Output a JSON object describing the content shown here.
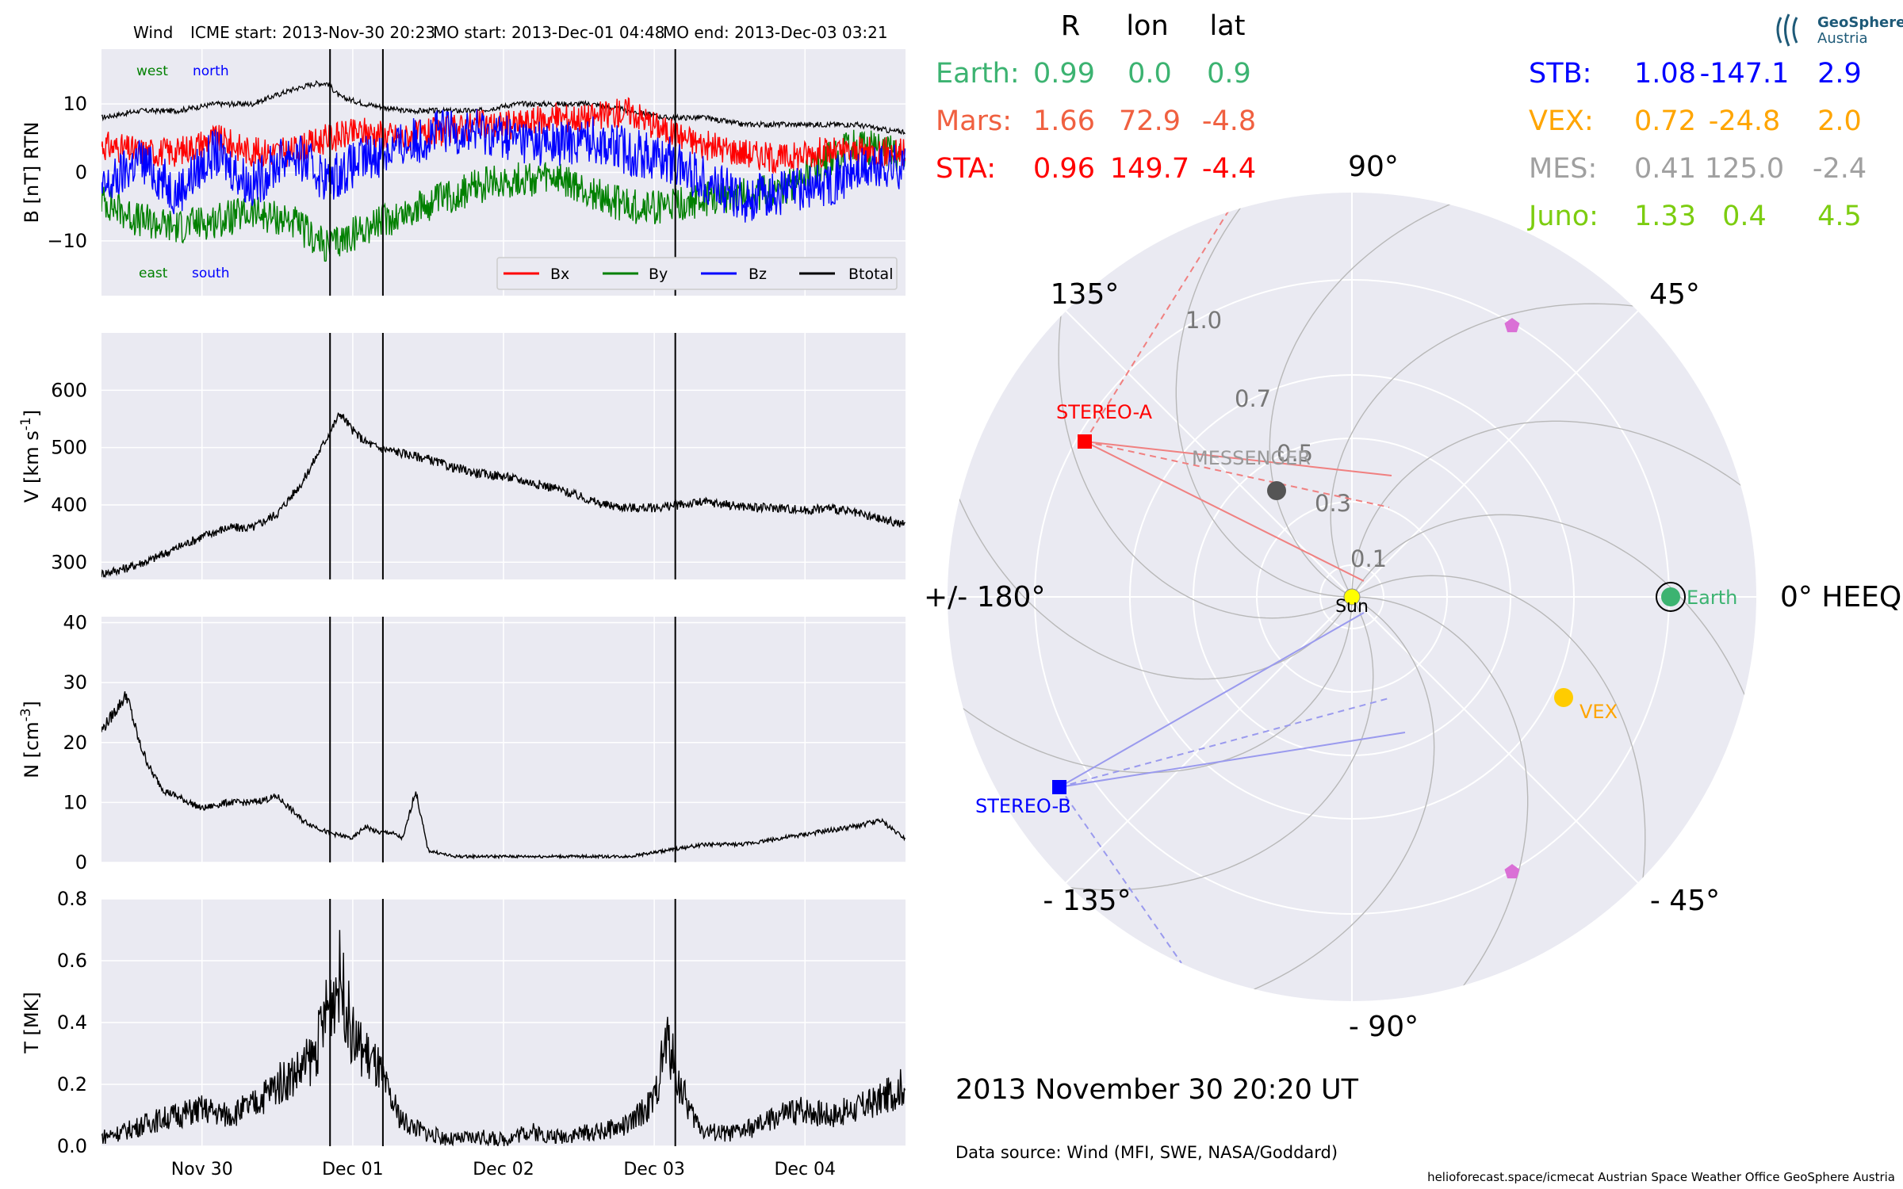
{
  "header": {
    "spacecraft": "Wind",
    "icme_start": "ICME start: 2013-Nov-30 20:23",
    "mo_start": "MO start: 2013-Dec-01 04:48",
    "mo_end": "MO end: 2013-Dec-03 03:21"
  },
  "colors": {
    "panel_bg": "#eaeaf2",
    "grid": "#ffffff",
    "bx": "#ff0000",
    "by": "#008000",
    "bz": "#0000ff",
    "btotal": "#000000",
    "earth": "#3cb371",
    "mars": "#f06040",
    "sta": "#ff0000",
    "stb": "#0000ff",
    "vex": "#ffa500",
    "mes": "#a0a0a0",
    "juno": "#7ccd10",
    "sun": "#ffff00"
  },
  "chart_data": [
    {
      "type": "line",
      "panel": "magnetic_field",
      "ylabel": "B [nT] RTN",
      "ylim": [
        -18,
        18
      ],
      "yticks": [
        -10,
        0,
        10
      ],
      "x_range": [
        "2013-11-29 08:00",
        "2013-12-04 16:00"
      ],
      "x_tick_labels": [
        "Nov 30",
        "Dec 01",
        "Dec 02",
        "Dec 03",
        "Dec 04"
      ],
      "x_tick_dates": [
        "2013-11-30",
        "2013-12-01",
        "2013-12-02",
        "2013-12-03",
        "2013-12-04"
      ],
      "event_lines": [
        "2013-11-30 20:23",
        "2013-12-01 04:48",
        "2013-12-03 03:21"
      ],
      "annotations": {
        "west": "west",
        "north": "north",
        "east": "east",
        "south": "south"
      },
      "legend": [
        "Bx",
        "By",
        "Bz",
        "Btotal"
      ],
      "legend_position": "lower-right",
      "series": [
        {
          "name": "Btotal",
          "t": [
            0,
            6,
            12,
            18,
            24,
            30,
            34,
            36,
            38,
            42,
            48,
            54,
            60,
            66,
            72,
            78,
            84,
            90,
            96,
            102,
            108,
            114,
            120,
            126,
            132
          ],
          "values": [
            8,
            9,
            9,
            10,
            10,
            12,
            13,
            13,
            11,
            10,
            9,
            9,
            9,
            10,
            10,
            10,
            9,
            8,
            8,
            7,
            7,
            7,
            7,
            6,
            6
          ]
        },
        {
          "name": "Bx",
          "t": [
            0,
            6,
            12,
            18,
            24,
            30,
            36,
            42,
            48,
            54,
            60,
            66,
            72,
            78,
            84,
            90,
            96,
            102,
            108,
            114,
            120,
            126,
            132
          ],
          "values": [
            4,
            3,
            3,
            5,
            3,
            3,
            5,
            6,
            5,
            6,
            7,
            7,
            8,
            8,
            9,
            6,
            4,
            3,
            2,
            3,
            3,
            3,
            2
          ]
        },
        {
          "name": "By",
          "t": [
            0,
            6,
            12,
            18,
            24,
            30,
            36,
            42,
            48,
            54,
            60,
            66,
            72,
            78,
            84,
            90,
            96,
            102,
            108,
            114,
            120,
            126,
            132
          ],
          "values": [
            -4,
            -7,
            -8,
            -7,
            -6,
            -7,
            -11,
            -8,
            -6,
            -4,
            -2,
            -1,
            -1,
            -3,
            -5,
            -5,
            -4,
            -3,
            -3,
            1,
            4,
            3,
            -2
          ]
        },
        {
          "name": "Bz",
          "t": [
            0,
            6,
            12,
            18,
            24,
            30,
            36,
            42,
            48,
            54,
            60,
            66,
            72,
            78,
            84,
            90,
            96,
            102,
            108,
            114,
            120,
            126,
            132
          ],
          "values": [
            -3,
            2,
            -3,
            3,
            -2,
            3,
            -1,
            2,
            4,
            6,
            6,
            5,
            4,
            5,
            3,
            2,
            -1,
            -4,
            -3,
            -2,
            0,
            1,
            0
          ]
        }
      ]
    },
    {
      "type": "line",
      "panel": "speed",
      "ylabel": "V [km s",
      "ylabel_sup": "-1",
      "ylabel_end": "]",
      "ylim": [
        270,
        700
      ],
      "yticks": [
        300,
        400,
        500,
        600
      ],
      "series": [
        {
          "name": "V",
          "t": [
            0,
            4,
            8,
            12,
            16,
            20,
            24,
            28,
            32,
            34,
            36,
            38,
            40,
            42,
            44,
            48,
            52,
            56,
            60,
            64,
            68,
            72,
            76,
            80,
            84,
            88,
            92,
            96,
            100,
            104,
            108,
            112,
            116,
            120,
            124,
            128,
            132
          ],
          "values": [
            280,
            290,
            305,
            325,
            345,
            360,
            360,
            385,
            440,
            480,
            520,
            560,
            530,
            510,
            500,
            490,
            480,
            465,
            455,
            450,
            440,
            430,
            415,
            400,
            395,
            395,
            400,
            405,
            400,
            395,
            395,
            390,
            395,
            385,
            375,
            365,
            350
          ]
        }
      ]
    },
    {
      "type": "line",
      "panel": "density",
      "ylabel": "N [cm",
      "ylabel_sup": "-3",
      "ylabel_end": "]",
      "ylim": [
        0,
        41
      ],
      "yticks": [
        0,
        10,
        20,
        30,
        40
      ],
      "series": [
        {
          "name": "N",
          "t": [
            0,
            2,
            4,
            6,
            8,
            10,
            12,
            16,
            20,
            24,
            28,
            32,
            36,
            40,
            42,
            44,
            46,
            48,
            50,
            52,
            56,
            60,
            66,
            72,
            78,
            84,
            90,
            96,
            102,
            108,
            114,
            120,
            124,
            128,
            132
          ],
          "values": [
            22,
            25,
            28,
            20,
            15,
            12,
            11,
            9,
            10,
            10,
            11,
            7,
            5,
            4,
            6,
            5,
            5,
            4,
            12,
            2,
            1,
            1,
            1,
            1,
            1,
            1,
            2,
            3,
            3,
            4,
            5,
            6,
            7,
            4,
            2
          ]
        }
      ]
    },
    {
      "type": "line",
      "panel": "temperature",
      "ylabel": "T [MK]",
      "ylim": [
        0,
        0.8
      ],
      "yticks": [
        0.0,
        0.2,
        0.4,
        0.6,
        0.8
      ],
      "series": [
        {
          "name": "T",
          "t": [
            0,
            4,
            8,
            12,
            16,
            20,
            24,
            28,
            32,
            34,
            36,
            38,
            40,
            42,
            44,
            46,
            48,
            52,
            56,
            60,
            64,
            68,
            72,
            76,
            80,
            84,
            88,
            90,
            92,
            94,
            96,
            100,
            104,
            108,
            112,
            116,
            120,
            124,
            128,
            132
          ],
          "values": [
            0.03,
            0.05,
            0.08,
            0.1,
            0.12,
            0.1,
            0.13,
            0.2,
            0.25,
            0.3,
            0.45,
            0.55,
            0.35,
            0.3,
            0.25,
            0.15,
            0.08,
            0.04,
            0.02,
            0.03,
            0.02,
            0.05,
            0.03,
            0.04,
            0.05,
            0.07,
            0.15,
            0.35,
            0.2,
            0.1,
            0.05,
            0.04,
            0.06,
            0.1,
            0.12,
            0.1,
            0.12,
            0.15,
            0.2,
            0.22
          ]
        }
      ]
    },
    {
      "type": "scatter",
      "panel": "polar_position",
      "coordinate_system": "0° HEEQ",
      "r_ticks": [
        "0.1",
        "0.3",
        "0.5",
        "0.7",
        "1.0"
      ],
      "angle_labels": [
        "90°",
        "45°",
        "0° HEEQ",
        "- 45°",
        "- 90°",
        "- 135°",
        "+/- 180°",
        "135°"
      ],
      "points": [
        {
          "name": "Sun",
          "r": 0,
          "lon": 0
        },
        {
          "name": "Earth",
          "r": 0.99,
          "lon": 0.0
        },
        {
          "name": "STEREO-A",
          "r": 0.96,
          "lon": 149.7
        },
        {
          "name": "STEREO-B",
          "r": 1.08,
          "lon": -147.1
        },
        {
          "name": "VEX",
          "r": 0.72,
          "lon": -24.8
        },
        {
          "name": "MESSENGER",
          "r": 0.41,
          "lon": 125.0
        },
        {
          "name": "Mars",
          "r": 1.66,
          "lon": 72.9
        },
        {
          "name": "Juno",
          "r": 1.33,
          "lon": 0.4
        }
      ]
    }
  ],
  "positions_table": {
    "headers": [
      "R",
      "lon",
      "lat"
    ],
    "left": [
      {
        "name": "Earth:",
        "r": "0.99",
        "lon": "0.0",
        "lat": "0.9"
      },
      {
        "name": "Mars:",
        "r": "1.66",
        "lon": "72.9",
        "lat": "-4.8"
      },
      {
        "name": "STA:",
        "r": "0.96",
        "lon": "149.7",
        "lat": "-4.4"
      }
    ],
    "right": [
      {
        "name": "STB:",
        "r": "1.08",
        "lon": "-147.1",
        "lat": "2.9"
      },
      {
        "name": "VEX:",
        "r": "0.72",
        "lon": "-24.8",
        "lat": "2.0"
      },
      {
        "name": "MES:",
        "r": "0.41",
        "lon": "125.0",
        "lat": "-2.4"
      },
      {
        "name": "Juno:",
        "r": "1.33",
        "lon": "0.4",
        "lat": "4.5"
      }
    ]
  },
  "labels": {
    "sun": "Sun",
    "earth": "Earth",
    "vex": "VEX",
    "stereo_a": "STEREO-A",
    "stereo_b": "STEREO-B",
    "messenger": "MESSENGER"
  },
  "footer": {
    "date": "2013 November 30  20:20 UT",
    "source": "Data source: Wind (MFI, SWE, NASA/Goddard)",
    "credits": "helioforecast.space/icmecat   Austrian Space Weather Office   GeoSphere Austria"
  },
  "logo": {
    "line1": "GeoSphere",
    "line2": "Austria"
  }
}
